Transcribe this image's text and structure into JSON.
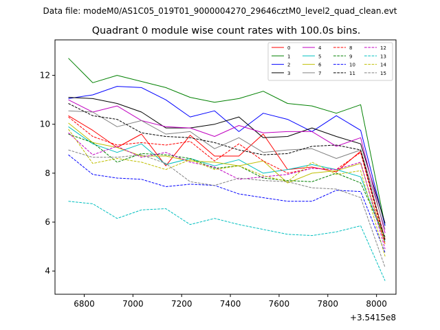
{
  "chart_data": {
    "type": "line",
    "suptitle": "Data file: modeM0/AS1C05_019T01_9000004270_29646cztM0_level2_quad_clean.evt",
    "title": "Quadrant 0 module wise count rates with 100.0s bins.",
    "xlabel": "",
    "ylabel": "",
    "offset_text": "+3.5415e8",
    "xlim": [
      6680,
      8080
    ],
    "ylim": [
      3.05,
      13.45
    ],
    "xticks": [
      6800,
      7000,
      7200,
      7400,
      7600,
      7800,
      8000
    ],
    "yticks": [
      4,
      6,
      8,
      10,
      12
    ],
    "x": [
      6735,
      6835,
      6935,
      7035,
      7135,
      7235,
      7335,
      7435,
      7535,
      7635,
      7735,
      7835,
      7935,
      8035
    ],
    "legend_position": "top-right",
    "series": [
      {
        "name": "0",
        "color": "#ff0000",
        "dash": "solid",
        "values": [
          10.35,
          9.75,
          9.05,
          9.6,
          8.3,
          9.55,
          8.7,
          8.7,
          9.6,
          8.15,
          8.25,
          8.05,
          8.9,
          5.3
        ]
      },
      {
        "name": "1",
        "color": "#008000",
        "dash": "solid",
        "values": [
          12.7,
          11.7,
          12.0,
          11.75,
          11.5,
          11.1,
          10.9,
          11.05,
          11.35,
          10.85,
          10.75,
          10.45,
          10.8,
          5.85
        ]
      },
      {
        "name": "2",
        "color": "#0000ff",
        "dash": "solid",
        "values": [
          11.05,
          11.2,
          11.55,
          11.5,
          11.0,
          10.3,
          10.55,
          9.7,
          10.45,
          10.2,
          9.7,
          10.35,
          9.75,
          5.85
        ]
      },
      {
        "name": "3",
        "color": "#000000",
        "dash": "solid",
        "values": [
          11.1,
          11.05,
          10.85,
          10.5,
          9.85,
          9.85,
          10.0,
          10.3,
          9.45,
          9.5,
          9.85,
          9.5,
          9.2,
          5.95
        ]
      },
      {
        "name": "4",
        "color": "#c000c0",
        "dash": "solid",
        "values": [
          11.0,
          10.5,
          10.75,
          10.15,
          9.9,
          9.85,
          9.5,
          9.95,
          9.65,
          9.7,
          9.7,
          9.1,
          9.45,
          5.55
        ]
      },
      {
        "name": "5",
        "color": "#00bfbf",
        "dash": "solid",
        "values": [
          9.9,
          9.2,
          8.85,
          9.2,
          8.35,
          8.6,
          8.3,
          8.55,
          8.0,
          8.15,
          8.35,
          8.15,
          7.85,
          5.2
        ]
      },
      {
        "name": "6",
        "color": "#bfbf00",
        "dash": "solid",
        "values": [
          10.05,
          9.25,
          9.05,
          8.7,
          8.7,
          8.5,
          8.45,
          8.3,
          8.5,
          7.6,
          8.0,
          8.1,
          8.4,
          5.1
        ]
      },
      {
        "name": "7",
        "color": "#808080",
        "dash": "solid",
        "values": [
          10.55,
          10.5,
          9.9,
          10.15,
          9.6,
          9.7,
          9.0,
          9.45,
          8.85,
          8.95,
          9.0,
          8.6,
          8.95,
          5.7
        ]
      },
      {
        "name": "8",
        "color": "#ff0000",
        "dash": "dashed",
        "values": [
          10.3,
          9.5,
          9.15,
          9.25,
          9.15,
          9.3,
          8.5,
          9.2,
          8.5,
          8.0,
          8.2,
          8.15,
          8.85,
          5.1
        ]
      },
      {
        "name": "9",
        "color": "#008000",
        "dash": "dashed",
        "values": [
          9.6,
          9.25,
          8.45,
          8.8,
          8.75,
          8.6,
          8.2,
          8.3,
          7.8,
          7.7,
          7.65,
          8.0,
          7.6,
          5.4
        ]
      },
      {
        "name": "10",
        "color": "#0000ff",
        "dash": "dashed",
        "values": [
          8.75,
          7.95,
          7.8,
          7.75,
          7.45,
          7.55,
          7.5,
          7.15,
          7.0,
          6.85,
          6.85,
          7.3,
          7.25,
          4.75
        ]
      },
      {
        "name": "11",
        "color": "#000000",
        "dash": "dashed",
        "values": [
          10.85,
          10.35,
          10.2,
          9.65,
          9.5,
          9.45,
          9.25,
          8.95,
          8.75,
          8.8,
          9.1,
          9.15,
          8.95,
          5.25
        ]
      },
      {
        "name": "12",
        "color": "#c000c0",
        "dash": "dashed",
        "values": [
          9.65,
          8.75,
          9.1,
          8.65,
          8.85,
          8.45,
          8.25,
          7.75,
          7.85,
          7.95,
          8.2,
          8.15,
          8.45,
          4.9
        ]
      },
      {
        "name": "13",
        "color": "#00bfbf",
        "dash": "dashed",
        "values": [
          6.85,
          6.75,
          6.15,
          6.5,
          6.55,
          5.9,
          6.15,
          5.9,
          5.7,
          5.5,
          5.45,
          5.6,
          5.85,
          3.6
        ]
      },
      {
        "name": "14",
        "color": "#bfbf00",
        "dash": "dashed",
        "values": [
          9.8,
          8.4,
          8.6,
          8.45,
          8.15,
          8.55,
          8.15,
          8.3,
          7.9,
          7.65,
          8.45,
          7.95,
          8.1,
          4.6
        ]
      },
      {
        "name": "15",
        "color": "#808080",
        "dash": "dashed",
        "values": [
          8.95,
          8.65,
          8.65,
          8.75,
          8.4,
          7.65,
          7.5,
          7.8,
          7.7,
          7.65,
          7.4,
          7.35,
          7.0,
          4.15
        ]
      }
    ]
  }
}
